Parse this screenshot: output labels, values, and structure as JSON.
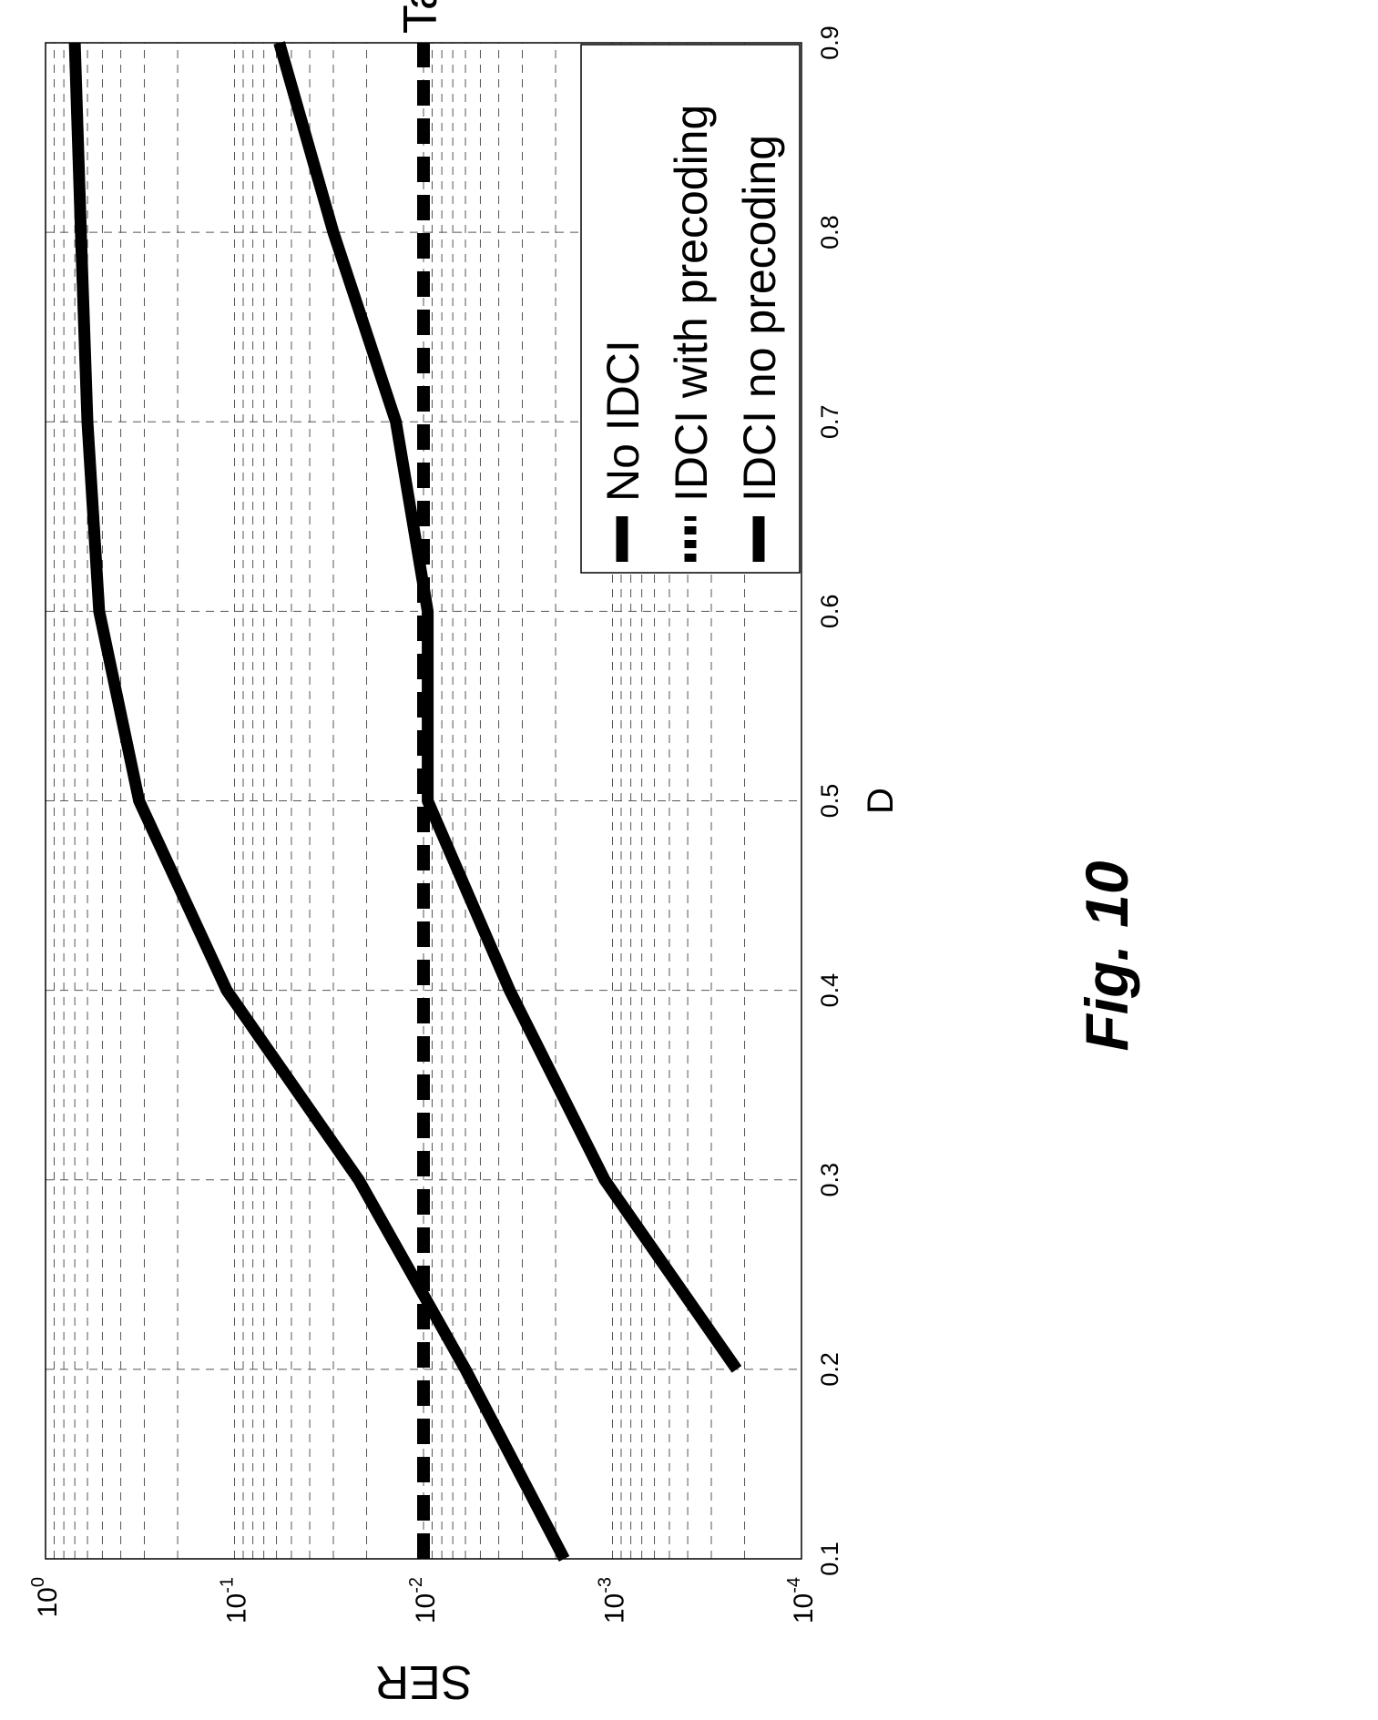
{
  "figure": {
    "caption": "Fig. 10",
    "annotation": "Target SER"
  },
  "chart_data": {
    "type": "line",
    "orientation_note_visible": false,
    "xlabel": "D",
    "ylabel": "SER",
    "xlim": [
      0.1,
      0.9
    ],
    "ylim": [
      0.0001,
      1
    ],
    "yscale": "log",
    "grid": true,
    "x_ticks": [
      "0.1",
      "0.2",
      "0.3",
      "0.4",
      "0.5",
      "0.6",
      "0.7",
      "0.8",
      "0.9"
    ],
    "y_ticks": [
      {
        "base": "10",
        "exp": "-4",
        "value": 0.0001
      },
      {
        "base": "10",
        "exp": "-3",
        "value": 0.001
      },
      {
        "base": "10",
        "exp": "-2",
        "value": 0.01
      },
      {
        "base": "10",
        "exp": "-1",
        "value": 0.1
      },
      {
        "base": "10",
        "exp": "0",
        "value": 1
      }
    ],
    "legend_position": "bottom-right",
    "series": [
      {
        "name": "No IDCI",
        "style": "solid",
        "color": "#000000",
        "x": [
          0.1,
          0.2,
          0.3,
          0.4,
          0.5,
          0.6,
          0.7,
          0.8,
          0.9
        ],
        "y": [
          0.0018,
          0.006,
          0.022,
          0.11,
          0.32,
          0.52,
          0.6,
          0.65,
          0.7
        ]
      },
      {
        "name": "IDCI with precoding",
        "style": "dashed",
        "color": "#000000",
        "x": [
          0.1,
          0.9
        ],
        "y": [
          0.01,
          0.01
        ]
      },
      {
        "name": "IDCI no precoding",
        "style": "solid",
        "color": "#000000",
        "x": [
          0.2,
          0.3,
          0.4,
          0.5,
          0.6,
          0.7,
          0.8,
          0.9
        ],
        "y": [
          0.00022,
          0.0011,
          0.0035,
          0.0095,
          0.0095,
          0.014,
          0.03,
          0.058
        ]
      }
    ]
  }
}
